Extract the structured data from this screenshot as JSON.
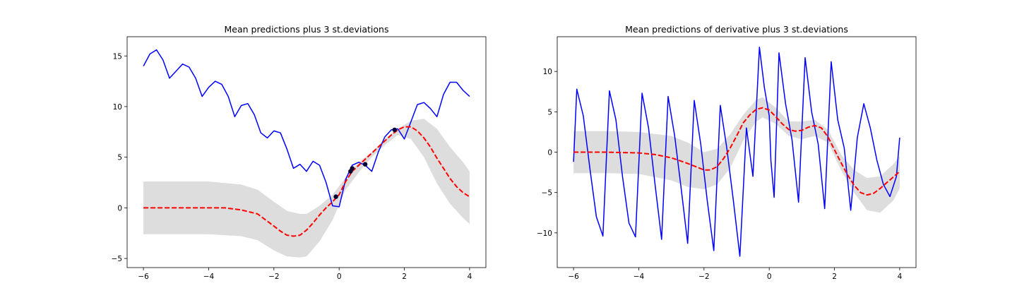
{
  "chart_data": [
    {
      "type": "line",
      "title": "Mean predictions plus 3 st.deviations",
      "xlabel": "",
      "ylabel": "",
      "xlim": [
        -6.5,
        4.5
      ],
      "ylim": [
        -5.9,
        16.9
      ],
      "xticks": [
        -6,
        -4,
        -2,
        0,
        2,
        4
      ],
      "yticks": [
        -5,
        0,
        5,
        10,
        15
      ],
      "grid": false,
      "legend": "none",
      "series": [
        {
          "kind": "line",
          "style": "solid",
          "color": "#0000ff",
          "x": [
            -6.0,
            -5.8,
            -5.6,
            -5.4,
            -5.2,
            -5.0,
            -4.8,
            -4.6,
            -4.4,
            -4.2,
            -4.0,
            -3.8,
            -3.6,
            -3.4,
            -3.2,
            -3.0,
            -2.8,
            -2.6,
            -2.4,
            -2.2,
            -2.0,
            -1.8,
            -1.6,
            -1.4,
            -1.2,
            -1.0,
            -0.8,
            -0.6,
            -0.4,
            -0.2,
            0.0,
            0.2,
            0.4,
            0.6,
            0.8,
            1.0,
            1.2,
            1.4,
            1.6,
            1.8,
            2.0,
            2.2,
            2.4,
            2.6,
            2.8,
            3.0,
            3.2,
            3.4,
            3.6,
            3.8,
            4.0
          ],
          "y": [
            14.0,
            15.2,
            15.6,
            14.6,
            12.8,
            13.5,
            14.2,
            13.9,
            12.8,
            11.0,
            11.9,
            12.5,
            12.2,
            11.0,
            9.0,
            10.1,
            10.3,
            9.2,
            7.4,
            6.9,
            7.6,
            7.4,
            5.8,
            3.9,
            4.3,
            3.6,
            4.6,
            4.2,
            2.5,
            0.2,
            0.1,
            2.8,
            4.2,
            4.5,
            4.2,
            3.6,
            5.5,
            7.0,
            7.7,
            7.8,
            6.8,
            8.5,
            10.2,
            10.4,
            9.8,
            9.0,
            11.2,
            12.4,
            12.4,
            11.6,
            11.0
          ]
        },
        {
          "kind": "dashed",
          "style": "dashed",
          "color": "#ff0000",
          "x": [
            -6.0,
            -5.5,
            -5.0,
            -4.5,
            -4.0,
            -3.5,
            -3.0,
            -2.5,
            -2.0,
            -1.8,
            -1.6,
            -1.4,
            -1.2,
            -1.0,
            -0.8,
            -0.6,
            -0.4,
            -0.2,
            0.0,
            0.2,
            0.4,
            0.6,
            0.8,
            1.0,
            1.2,
            1.4,
            1.6,
            1.8,
            2.0,
            2.2,
            2.4,
            2.6,
            2.8,
            3.0,
            3.2,
            3.4,
            3.6,
            3.8,
            4.0
          ],
          "y": [
            0.0,
            0.0,
            0.0,
            0.0,
            0.0,
            0.0,
            -0.2,
            -0.6,
            -1.8,
            -2.3,
            -2.7,
            -2.8,
            -2.7,
            -2.2,
            -1.5,
            -0.7,
            0.0,
            0.6,
            1.3,
            2.6,
            3.6,
            4.2,
            4.8,
            5.4,
            6.0,
            6.6,
            7.2,
            7.7,
            8.0,
            8.0,
            7.6,
            6.9,
            6.0,
            4.9,
            3.9,
            2.9,
            2.1,
            1.5,
            1.1
          ]
        },
        {
          "kind": "band",
          "color": "#dddddd",
          "x": [
            -6.0,
            -5.0,
            -4.0,
            -3.0,
            -2.5,
            -2.0,
            -1.6,
            -1.2,
            -1.0,
            -0.6,
            -0.2,
            0.2,
            0.6,
            1.0,
            1.4,
            1.8,
            2.2,
            2.6,
            3.0,
            3.4,
            3.8,
            4.0
          ],
          "upper": [
            2.6,
            2.6,
            2.6,
            2.3,
            1.8,
            0.6,
            -0.3,
            -0.6,
            -0.6,
            0.2,
            1.3,
            3.0,
            4.5,
            5.5,
            6.8,
            7.8,
            8.6,
            8.8,
            7.8,
            6.0,
            4.5,
            3.6
          ],
          "lower": [
            -2.6,
            -2.6,
            -2.6,
            -2.8,
            -3.2,
            -4.2,
            -4.8,
            -4.9,
            -4.8,
            -3.3,
            -1.2,
            1.8,
            3.5,
            5.0,
            6.2,
            7.2,
            6.8,
            5.0,
            2.4,
            0.4,
            -1.0,
            -1.6
          ]
        },
        {
          "kind": "points",
          "color": "#000033",
          "x": [
            -0.1,
            0.35,
            0.4,
            0.8,
            1.7
          ],
          "y": [
            1.1,
            3.6,
            3.9,
            4.3,
            7.7
          ]
        }
      ]
    },
    {
      "type": "line",
      "title": "Mean predictions of derivative plus 3 st.deviations",
      "xlabel": "",
      "ylabel": "",
      "xlim": [
        -6.5,
        4.5
      ],
      "ylim": [
        -14.3,
        14.3
      ],
      "xticks": [
        -6,
        -4,
        -2,
        0,
        2,
        4
      ],
      "yticks": [
        -10,
        -5,
        0,
        5,
        10
      ],
      "grid": false,
      "legend": "none",
      "series": [
        {
          "kind": "line",
          "style": "solid",
          "color": "#0000ff",
          "x": [
            -6.0,
            -5.9,
            -5.7,
            -5.5,
            -5.3,
            -5.1,
            -4.9,
            -4.7,
            -4.5,
            -4.3,
            -4.1,
            -3.9,
            -3.7,
            -3.5,
            -3.3,
            -3.1,
            -2.9,
            -2.7,
            -2.5,
            -2.3,
            -2.1,
            -1.9,
            -1.7,
            -1.5,
            -1.3,
            -1.1,
            -0.9,
            -0.7,
            -0.5,
            -0.3,
            -0.15,
            0.0,
            0.05,
            0.15,
            0.3,
            0.5,
            0.7,
            0.9,
            1.1,
            1.3,
            1.5,
            1.7,
            1.9,
            2.1,
            2.3,
            2.5,
            2.7,
            2.9,
            3.1,
            3.3,
            3.5,
            3.7,
            3.9,
            4.0
          ],
          "y": [
            -1.2,
            7.8,
            4.5,
            -2.0,
            -8.0,
            -10.4,
            7.6,
            4.0,
            -3.0,
            -8.8,
            -10.5,
            7.3,
            3.0,
            -4.0,
            -10.8,
            6.9,
            2.0,
            -4.5,
            -11.3,
            6.4,
            1.0,
            -6.0,
            -12.2,
            5.8,
            0.5,
            -6.0,
            -12.9,
            3.0,
            -3.0,
            13.0,
            8.0,
            4.5,
            -1.0,
            -5.6,
            12.3,
            6.0,
            1.5,
            -6.2,
            11.7,
            5.0,
            1.0,
            -7.0,
            11.2,
            4.0,
            0.5,
            -7.2,
            1.8,
            6.0,
            3.0,
            -1.0,
            -4.0,
            -5.5,
            -3.0,
            1.8
          ]
        },
        {
          "kind": "dashed",
          "style": "dashed",
          "color": "#ff0000",
          "x": [
            -6.0,
            -5.0,
            -4.0,
            -3.5,
            -3.0,
            -2.5,
            -2.0,
            -1.8,
            -1.6,
            -1.4,
            -1.2,
            -1.0,
            -0.8,
            -0.6,
            -0.4,
            -0.2,
            0.0,
            0.2,
            0.4,
            0.6,
            0.8,
            1.0,
            1.2,
            1.4,
            1.6,
            1.8,
            2.0,
            2.2,
            2.4,
            2.6,
            2.8,
            3.0,
            3.2,
            3.4,
            3.6,
            3.8,
            4.0
          ],
          "y": [
            0.0,
            0.0,
            -0.1,
            -0.3,
            -0.7,
            -1.4,
            -2.2,
            -2.2,
            -1.8,
            -0.8,
            0.5,
            2.0,
            3.6,
            4.6,
            5.3,
            5.5,
            5.2,
            4.4,
            3.5,
            2.8,
            2.6,
            2.7,
            3.1,
            3.3,
            3.0,
            1.9,
            0.3,
            -1.3,
            -2.8,
            -4.1,
            -5.0,
            -5.3,
            -5.1,
            -4.5,
            -3.8,
            -3.1,
            -2.4
          ]
        },
        {
          "kind": "band",
          "color": "#dddddd",
          "x": [
            -6.0,
            -5.0,
            -4.0,
            -3.0,
            -2.5,
            -2.0,
            -1.6,
            -1.2,
            -0.8,
            -0.4,
            -0.2,
            0.2,
            0.6,
            1.0,
            1.4,
            1.8,
            2.2,
            2.6,
            3.0,
            3.4,
            3.8,
            4.0
          ],
          "upper": [
            2.6,
            2.6,
            2.5,
            2.0,
            1.2,
            0.0,
            0.4,
            2.2,
            4.6,
            6.5,
            6.8,
            5.5,
            3.8,
            3.8,
            4.0,
            2.8,
            -0.3,
            -2.2,
            -3.2,
            -3.0,
            -1.5,
            -0.5
          ],
          "lower": [
            -2.6,
            -2.6,
            -2.7,
            -3.5,
            -4.3,
            -4.6,
            -4.0,
            -2.0,
            1.4,
            3.8,
            4.3,
            3.5,
            2.0,
            1.6,
            2.0,
            1.2,
            -2.2,
            -5.0,
            -7.2,
            -7.5,
            -6.0,
            -4.5
          ]
        }
      ]
    }
  ]
}
